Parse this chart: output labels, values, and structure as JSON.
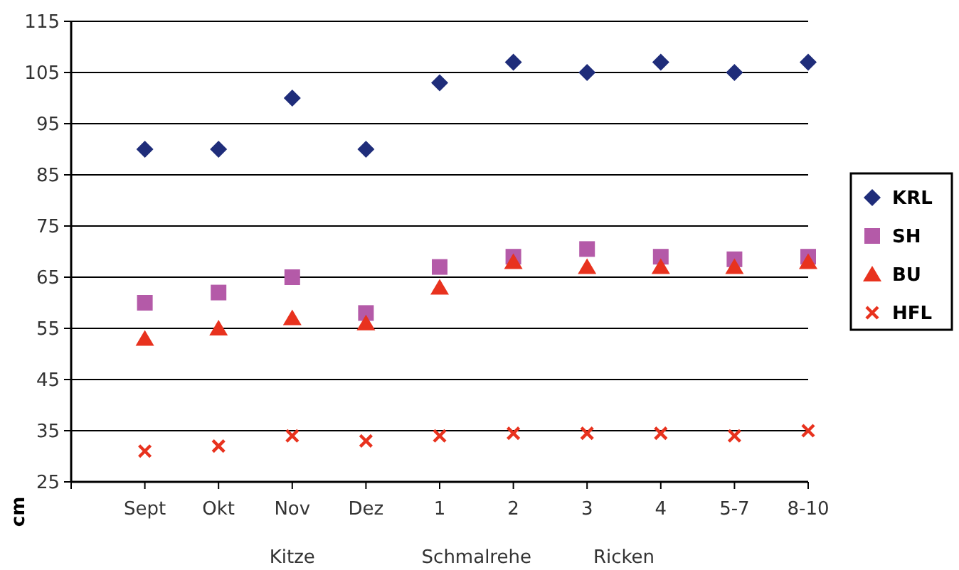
{
  "chart_data": {
    "type": "scatter",
    "ylabel": "cm",
    "categories": [
      "Sept",
      "Okt",
      "Nov",
      "Dez",
      "1",
      "2",
      "3",
      "4",
      "5-7",
      "8-10"
    ],
    "series": [
      {
        "name": "KRL",
        "color": "#1f2d7a",
        "marker": "diamond",
        "values": [
          90,
          90,
          100,
          90,
          103,
          107,
          105,
          107,
          105,
          107
        ]
      },
      {
        "name": "SH",
        "color": "#b45aa8",
        "marker": "square",
        "values": [
          60,
          62,
          65,
          58,
          67,
          69,
          70.5,
          69,
          68.5,
          69
        ]
      },
      {
        "name": "BU",
        "color": "#e8321e",
        "marker": "triangle",
        "values": [
          53,
          55,
          57,
          56,
          63,
          68,
          67,
          67,
          67,
          68
        ]
      },
      {
        "name": "HFL",
        "color": "#e8321e",
        "marker": "cross",
        "values": [
          31,
          32,
          34,
          33,
          34,
          34.5,
          34.5,
          34.5,
          34,
          35
        ]
      }
    ],
    "ylim": [
      25,
      115
    ],
    "yticks": [
      25,
      35,
      45,
      55,
      65,
      75,
      85,
      95,
      105,
      115
    ],
    "grid": "y",
    "legend": "right",
    "annotations": [
      "Kitze",
      "Schmalrehe",
      "Ricken"
    ]
  }
}
